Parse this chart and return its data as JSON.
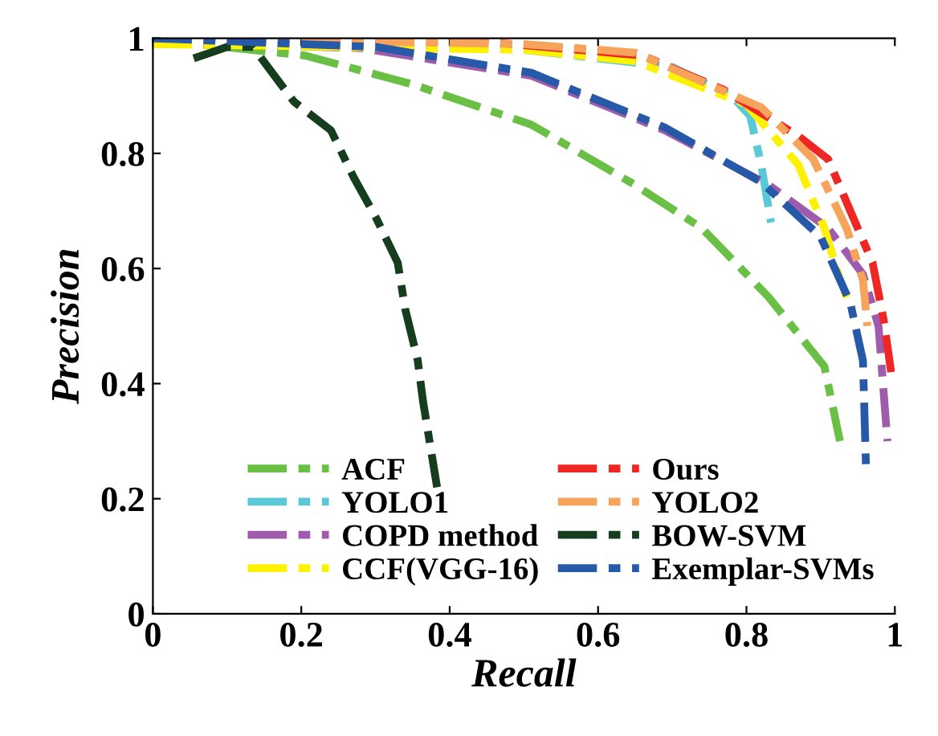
{
  "chart_data": {
    "type": "line",
    "xlabel": "Recall",
    "ylabel": "Precision",
    "xlim": [
      0,
      1
    ],
    "ylim": [
      0,
      1
    ],
    "xticks": [
      0,
      0.2,
      0.4,
      0.6,
      0.8,
      1
    ],
    "yticks": [
      0,
      0.2,
      0.4,
      0.6,
      0.8,
      1
    ],
    "grid": false,
    "legend": "bottom",
    "line_style": "dashed",
    "marker": "none",
    "series": [
      {
        "name": "ACF",
        "color": "#6abf45",
        "x": [
          0,
          0.06,
          0.205,
          0.35,
          0.51,
          0.65,
          0.74,
          0.83,
          0.905,
          0.926
        ],
        "values": [
          1.0,
          0.99,
          0.97,
          0.92,
          0.85,
          0.745,
          0.67,
          0.55,
          0.43,
          0.3
        ]
      },
      {
        "name": "YOLO1",
        "color": "#5bc8d8",
        "x": [
          0,
          0.5,
          0.7,
          0.78,
          0.805,
          0.82,
          0.833
        ],
        "values": [
          1.0,
          0.98,
          0.95,
          0.9,
          0.865,
          0.78,
          0.68
        ]
      },
      {
        "name": "COPD method",
        "color": "#a05cac",
        "x": [
          0,
          0.1,
          0.28,
          0.51,
          0.69,
          0.83,
          0.91,
          0.957,
          0.978,
          0.99
        ],
        "values": [
          1.0,
          0.99,
          0.983,
          0.935,
          0.84,
          0.745,
          0.67,
          0.59,
          0.5,
          0.3
        ]
      },
      {
        "name": "CCF(VGG-16)",
        "color": "#fff200",
        "x": [
          0,
          0.5,
          0.65,
          0.8,
          0.87,
          0.905,
          0.926,
          0.935
        ],
        "values": [
          0.99,
          0.98,
          0.96,
          0.885,
          0.78,
          0.67,
          0.58,
          0.55
        ]
      },
      {
        "name": "Ours",
        "color": "#ee2624",
        "x": [
          0,
          0.44,
          0.66,
          0.77,
          0.87,
          0.91,
          0.94,
          0.97,
          0.985,
          0.995
        ],
        "values": [
          1.0,
          0.995,
          0.97,
          0.91,
          0.83,
          0.79,
          0.7,
          0.61,
          0.51,
          0.42
        ]
      },
      {
        "name": "YOLO2",
        "color": "#f7a35c",
        "x": [
          0,
          0.5,
          0.65,
          0.82,
          0.89,
          0.935,
          0.957,
          0.963
        ],
        "values": [
          1.0,
          0.99,
          0.975,
          0.88,
          0.79,
          0.67,
          0.58,
          0.5
        ]
      },
      {
        "name": "BOW-SVM",
        "color": "#173d1f",
        "x": [
          0.055,
          0.1,
          0.135,
          0.155,
          0.19,
          0.24,
          0.27,
          0.3,
          0.33,
          0.34,
          0.357,
          0.364,
          0.383
        ],
        "values": [
          0.965,
          0.985,
          0.985,
          0.95,
          0.89,
          0.84,
          0.76,
          0.69,
          0.61,
          0.53,
          0.44,
          0.37,
          0.22
        ]
      },
      {
        "name": "Exemplar-SVMs",
        "color": "#2659a8",
        "x": [
          0,
          0.3,
          0.51,
          0.69,
          0.82,
          0.9,
          0.94,
          0.957,
          0.961
        ],
        "values": [
          1.0,
          0.985,
          0.94,
          0.845,
          0.75,
          0.655,
          0.54,
          0.44,
          0.26
        ]
      }
    ]
  }
}
